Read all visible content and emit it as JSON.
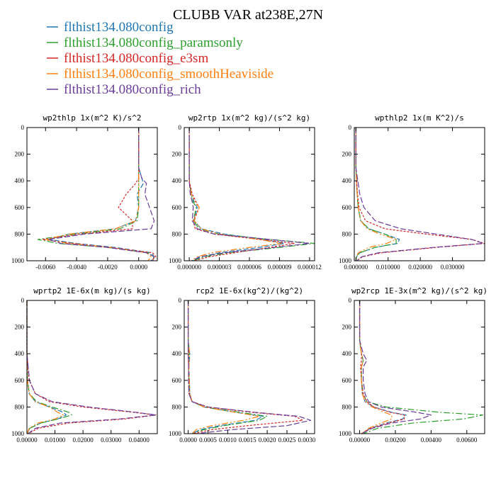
{
  "figure": {
    "title": "CLUBB VAR at238E,27N"
  },
  "legend": [
    {
      "label": "flthist134.080config",
      "color": "#1f77b4"
    },
    {
      "label": "flthist134.080config_paramsonly",
      "color": "#2ca02c"
    },
    {
      "label": "flthist134.080config_e3sm",
      "color": "#d62728"
    },
    {
      "label": "flthist134.080config_smoothHeaviside",
      "color": "#ff7f0e"
    },
    {
      "label": "flthist134.080config_rich",
      "color": "#6a3d9a"
    }
  ],
  "chart_data": [
    {
      "type": "line",
      "title": "wp2thlp   1x(m^2 K)/s^2",
      "xlim": [
        -0.0072,
        0.0012
      ],
      "xticks": [
        -0.006,
        -0.004,
        -0.002,
        0.0
      ],
      "xtick_labels": [
        "-0.0060",
        "-0.0040",
        "-0.0020",
        "0.0000"
      ],
      "ylim": [
        0,
        1000
      ],
      "yticks": [
        0,
        200,
        400,
        600,
        800,
        1000
      ],
      "y_inverted": true,
      "y": [
        0,
        300,
        380,
        420,
        500,
        600,
        700,
        760,
        800,
        840,
        870,
        900,
        940,
        970,
        1000
      ],
      "series": [
        {
          "name": "flthist134.080config",
          "x": [
            0,
            0,
            0.0002,
            0.0003,
            -0.0001,
            0,
            -0.0002,
            -0.0015,
            -0.0045,
            -0.0058,
            -0.004,
            -0.0015,
            0.0008,
            0.001,
            0.0008
          ]
        },
        {
          "name": "flthist134.080config_paramsonly",
          "x": [
            0,
            0,
            0,
            0,
            0,
            0,
            -0.0001,
            -0.0012,
            -0.004,
            -0.0065,
            -0.0052,
            -0.002,
            0.0006,
            0.001,
            0.0009
          ]
        },
        {
          "name": "flthist134.080config_e3sm",
          "x": [
            0,
            0,
            0,
            -0.0002,
            -0.0008,
            -0.0013,
            -0.0004,
            -0.0004,
            -0.0038,
            -0.0062,
            -0.0042,
            -0.0018,
            0.0009,
            0.0011,
            0.0008
          ]
        },
        {
          "name": "flthist134.080config_smoothHeaviside",
          "x": [
            0,
            0,
            0,
            0,
            0,
            0,
            -0.0002,
            -0.0015,
            -0.0045,
            -0.006,
            -0.0045,
            -0.0018,
            0.0005,
            0.0008,
            0.0006
          ]
        },
        {
          "name": "flthist134.080config_rich",
          "x": [
            0,
            0,
            0.0002,
            0.0005,
            0.0004,
            0.0007,
            0.001,
            0.0008,
            -0.0035,
            -0.0058,
            -0.005,
            -0.002,
            0.0005,
            0.001,
            0.0009
          ]
        }
      ]
    },
    {
      "type": "line",
      "title": "wp2rtp   1x(m^2 kg)/(s^2 kg)",
      "xlim": [
        -5e-07,
        1.25e-05
      ],
      "xticks": [
        0.0,
        3e-06,
        6e-06,
        9e-06,
        1.2e-05
      ],
      "xtick_labels": [
        "0.000000",
        "0.000003",
        "0.000006",
        "0.000009",
        "0.000012"
      ],
      "ylim": [
        0,
        1000
      ],
      "yticks": [
        0,
        200,
        400,
        600,
        800,
        1000
      ],
      "y_inverted": true,
      "y": [
        0,
        400,
        500,
        560,
        600,
        700,
        760,
        800,
        840,
        870,
        900,
        940,
        970,
        1000
      ],
      "series": [
        {
          "name": "flthist134.080config",
          "x": [
            0,
            0,
            2e-07,
            5e-07,
            8e-07,
            5e-07,
            1.2e-06,
            3.5e-06,
            7.5e-06,
            9.5e-06,
            7e-06,
            3e-06,
            1.2e-06,
            3e-07
          ]
        },
        {
          "name": "flthist134.080config_paramsonly",
          "x": [
            0,
            0,
            2e-07,
            4e-07,
            7e-07,
            4e-07,
            1e-06,
            3e-06,
            8e-06,
            1.25e-05,
            9e-06,
            4e-06,
            1.5e-06,
            4e-07
          ]
        },
        {
          "name": "flthist134.080config_e3sm",
          "x": [
            0,
            0,
            3e-07,
            7e-07,
            1e-06,
            4e-07,
            6e-07,
            2.5e-06,
            7e-06,
            1.05e-05,
            8e-06,
            4.5e-06,
            2e-06,
            5e-07
          ]
        },
        {
          "name": "flthist134.080config_smoothHeaviside",
          "x": [
            0,
            0,
            2e-07,
            6e-07,
            1e-06,
            5e-07,
            1.2e-06,
            3e-06,
            7e-06,
            9.2e-06,
            6e-06,
            2.2e-06,
            8e-07,
            2e-07
          ]
        },
        {
          "name": "flthist134.080config_rich",
          "x": [
            0,
            0,
            1e-07,
            3e-07,
            4e-07,
            3e-07,
            8e-07,
            2.5e-06,
            8e-06,
            1.2e-05,
            8.5e-06,
            3.5e-06,
            1e-06,
            3e-07
          ]
        }
      ]
    },
    {
      "type": "line",
      "title": "wpthlp2   1x(m K^2)/s",
      "xlim": [
        -0.0005,
        0.04
      ],
      "xticks": [
        0.0,
        0.01,
        0.02,
        0.03
      ],
      "xtick_labels": [
        "0.000000",
        "0.010000",
        "0.020000",
        "0.030000"
      ],
      "ylim": [
        0,
        1000
      ],
      "yticks": [
        0,
        200,
        400,
        600,
        800,
        1000
      ],
      "y_inverted": true,
      "y": [
        0,
        300,
        400,
        500,
        600,
        700,
        760,
        800,
        840,
        870,
        900,
        940,
        970,
        1000
      ],
      "series": [
        {
          "name": "flthist134.080config",
          "x": [
            0,
            0,
            0.0002,
            0.0004,
            0.0007,
            0.0015,
            0.004,
            0.009,
            0.0135,
            0.013,
            0.006,
            0.0012,
            0.0002,
            0
          ]
        },
        {
          "name": "flthist134.080config_paramsonly",
          "x": [
            0,
            0,
            0.0002,
            0.0004,
            0.0007,
            0.0015,
            0.004,
            0.009,
            0.0125,
            0.0125,
            0.006,
            0.0012,
            0.0002,
            0
          ]
        },
        {
          "name": "flthist134.080config_e3sm",
          "x": [
            0,
            0,
            0.0002,
            0.0005,
            0.001,
            0.003,
            0.009,
            0.022,
            0.036,
            0.04,
            0.025,
            0.008,
            0.002,
            0.0003
          ]
        },
        {
          "name": "flthist134.080config_smoothHeaviside",
          "x": [
            0,
            0,
            0.0002,
            0.0004,
            0.0007,
            0.0015,
            0.0035,
            0.0075,
            0.0125,
            0.0095,
            0.004,
            0.0008,
            0.0001,
            0
          ]
        },
        {
          "name": "flthist134.080config_rich",
          "x": [
            0,
            0,
            0.0006,
            0.0012,
            0.0025,
            0.006,
            0.014,
            0.025,
            0.036,
            0.0395,
            0.024,
            0.007,
            0.0018,
            0.0003
          ]
        }
      ]
    },
    {
      "type": "line",
      "title": "wprtp2   1E-6x(m kg)/(s kg)",
      "xlim": [
        0,
        0.0465
      ],
      "xticks": [
        0.0,
        0.01,
        0.02,
        0.03,
        0.04
      ],
      "xtick_labels": [
        "0.00000",
        "0.01000",
        "0.02000",
        "0.03000",
        "0.04000"
      ],
      "ylim": [
        0,
        1000
      ],
      "yticks": [
        0,
        200,
        400,
        600,
        800,
        1000
      ],
      "y_inverted": true,
      "y": [
        0,
        400,
        600,
        700,
        760,
        800,
        840,
        860,
        890,
        920,
        960,
        1000
      ],
      "series": [
        {
          "name": "flthist134.080config",
          "x": [
            0,
            0,
            0.0002,
            0.0008,
            0.003,
            0.008,
            0.013,
            0.014,
            0.011,
            0.005,
            0.001,
            0.0001
          ]
        },
        {
          "name": "flthist134.080config_paramsonly",
          "x": [
            0,
            0,
            0.0002,
            0.0009,
            0.0035,
            0.009,
            0.015,
            0.016,
            0.011,
            0.005,
            0.001,
            0.0001
          ]
        },
        {
          "name": "flthist134.080config_e3sm",
          "x": [
            0,
            0,
            0.0008,
            0.003,
            0.008,
            0.02,
            0.038,
            0.046,
            0.035,
            0.015,
            0.004,
            0.0005
          ]
        },
        {
          "name": "flthist134.080config_smoothHeaviside",
          "x": [
            0,
            0,
            0.0002,
            0.0008,
            0.003,
            0.008,
            0.011,
            0.013,
            0.01,
            0.004,
            0.0008,
            0.0001
          ]
        },
        {
          "name": "flthist134.080config_rich",
          "x": [
            0,
            0,
            0.0009,
            0.003,
            0.009,
            0.022,
            0.039,
            0.046,
            0.033,
            0.012,
            0.003,
            0.0004
          ]
        }
      ]
    },
    {
      "type": "line",
      "title": "rcp2   1E-6x(kg^2)/(kg^2)",
      "xlim": [
        -0.0001,
        0.0032
      ],
      "xticks": [
        0.0,
        0.0005,
        0.001,
        0.0015,
        0.002,
        0.0025,
        0.003
      ],
      "xtick_labels": [
        "0.0000",
        "0.0005",
        "0.0010",
        "0.0015",
        "0.0020",
        "0.0025",
        "0.0030"
      ],
      "ylim": [
        0,
        1000
      ],
      "yticks": [
        0,
        200,
        400,
        600,
        800,
        1000
      ],
      "y_inverted": true,
      "y": [
        0,
        300,
        350,
        400,
        500,
        600,
        700,
        760,
        800,
        840,
        870,
        900,
        940,
        970,
        1000
      ],
      "series": [
        {
          "name": "flthist134.080config",
          "x": [
            0,
            0,
            2e-05,
            4e-05,
            2e-05,
            3e-05,
            4e-05,
            0.0001,
            0.0004,
            0.0012,
            0.0019,
            0.0017,
            0.0008,
            0.0003,
            0.0001
          ]
        },
        {
          "name": "flthist134.080config_paramsonly",
          "x": [
            0,
            0,
            0,
            2e-05,
            1e-05,
            2e-05,
            3e-05,
            0.0001,
            0.0004,
            0.0013,
            0.002,
            0.0018,
            0.0009,
            0.0004,
            0.0001
          ]
        },
        {
          "name": "flthist134.080config_e3sm",
          "x": [
            0,
            0,
            0,
            0,
            1e-05,
            1e-05,
            2e-05,
            0.0001,
            0.0005,
            0.0016,
            0.0027,
            0.0029,
            0.0015,
            0.0006,
            0.0001
          ]
        },
        {
          "name": "flthist134.080config_smoothHeaviside",
          "x": [
            0,
            0,
            2e-05,
            3e-05,
            2e-05,
            3e-05,
            4e-05,
            0.0001,
            0.0004,
            0.0012,
            0.0018,
            0.0014,
            0.0006,
            0.0002,
            0.0001
          ]
        },
        {
          "name": "flthist134.080config_rich",
          "x": [
            0,
            0,
            0,
            0,
            1e-05,
            1e-05,
            2e-05,
            0.0001,
            0.0005,
            0.0017,
            0.0028,
            0.0031,
            0.0025,
            0.0011,
            0.0002
          ]
        }
      ]
    },
    {
      "type": "line",
      "title": "wp2rcp   1E-3x(m^2 kg)/(s^2 kg)",
      "xlim": [
        -0.0003,
        0.007
      ],
      "xticks": [
        0.0,
        0.002,
        0.004,
        0.006
      ],
      "xtick_labels": [
        "0.00000",
        "0.00200",
        "0.00400",
        "0.00600"
      ],
      "ylim": [
        0,
        1000
      ],
      "yticks": [
        0,
        200,
        400,
        600,
        800,
        1000
      ],
      "y_inverted": true,
      "y": [
        0,
        300,
        400,
        450,
        500,
        600,
        700,
        760,
        800,
        840,
        860,
        890,
        920,
        960,
        1000
      ],
      "series": [
        {
          "name": "flthist134.080config",
          "x": [
            0,
            0,
            0.0001,
            0.0002,
            0.0001,
            0.0001,
            0.00015,
            0.0003,
            0.0008,
            0.0018,
            0.0026,
            0.0024,
            0.0015,
            0.0006,
            0.0001
          ]
        },
        {
          "name": "flthist134.080config_paramsonly",
          "x": [
            0,
            0,
            0.0001,
            0.0002,
            0.0001,
            0.0001,
            0.0002,
            0.0004,
            0.0015,
            0.0045,
            0.0069,
            0.0058,
            0.003,
            0.001,
            0.0002
          ]
        },
        {
          "name": "flthist134.080config_e3sm",
          "x": [
            0,
            0,
            0.0001,
            0.0001,
            5e-05,
            0.0001,
            0.0002,
            0.0004,
            0.0008,
            0.0017,
            0.0025,
            0.0025,
            0.0016,
            0.0006,
            0.0001
          ]
        },
        {
          "name": "flthist134.080config_smoothHeaviside",
          "x": [
            0,
            0,
            0.0001,
            0.0002,
            0.0001,
            0.0001,
            0.00015,
            0.0003,
            0.0007,
            0.0014,
            0.0018,
            0.0018,
            0.0012,
            0.0005,
            0.0001
          ]
        },
        {
          "name": "flthist134.080config_rich",
          "x": [
            0,
            0,
            0.0002,
            0.0004,
            0.0002,
            0.0002,
            0.0003,
            0.0005,
            0.0012,
            0.0032,
            0.004,
            0.0034,
            0.0018,
            0.0007,
            0.0001
          ]
        }
      ]
    }
  ]
}
